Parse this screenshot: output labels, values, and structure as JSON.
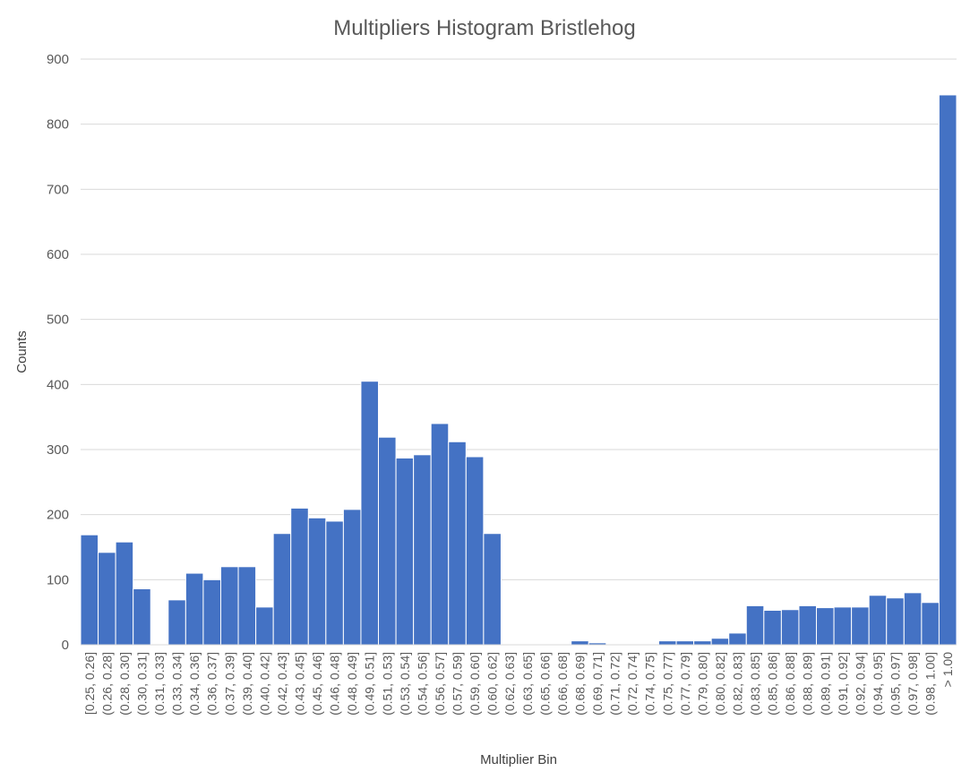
{
  "chart_data": {
    "type": "bar",
    "title": "Multipliers Histogram Bristlehog",
    "xlabel": "Multiplier Bin",
    "ylabel": "Counts",
    "ylim": [
      0,
      900
    ],
    "yticks": [
      0,
      100,
      200,
      300,
      400,
      500,
      600,
      700,
      800,
      900
    ],
    "grid": true,
    "legend": "none",
    "bar_color": "#4472C4",
    "categories": [
      "[0.25, 0.26]",
      "(0.26, 0.28]",
      "(0.28, 0.30]",
      "(0.30, 0.31]",
      "(0.31, 0.33]",
      "(0.33, 0.34]",
      "(0.34, 0.36]",
      "(0.36, 0.37]",
      "(0.37, 0.39]",
      "(0.39, 0.40]",
      "(0.40, 0.42]",
      "(0.42, 0.43]",
      "(0.43, 0.45]",
      "(0.45, 0.46]",
      "(0.46, 0.48]",
      "(0.48, 0.49]",
      "(0.49, 0.51]",
      "(0.51, 0.53]",
      "(0.53, 0.54]",
      "(0.54, 0.56]",
      "(0.56, 0.57]",
      "(0.57, 0.59]",
      "(0.59, 0.60]",
      "(0.60, 0.62]",
      "(0.62, 0.63]",
      "(0.63, 0.65]",
      "(0.65, 0.66]",
      "(0.66, 0.68]",
      "(0.68, 0.69]",
      "(0.69, 0.71]",
      "(0.71, 0.72]",
      "(0.72, 0.74]",
      "(0.74, 0.75]",
      "(0.75, 0.77]",
      "(0.77, 0.79]",
      "(0.79, 0.80]",
      "(0.80, 0.82]",
      "(0.82, 0.83]",
      "(0.83, 0.85]",
      "(0.85, 0.86]",
      "(0.86, 0.88]",
      "(0.88, 0.89]",
      "(0.89, 0.91]",
      "(0.91, 0.92]",
      "(0.92, 0.94]",
      "(0.94, 0.95]",
      "(0.95, 0.97]",
      "(0.97, 0.98]",
      "(0.98, 1.00]",
      "> 1.00"
    ],
    "values": [
      169,
      142,
      158,
      86,
      0,
      69,
      110,
      100,
      120,
      120,
      58,
      171,
      210,
      195,
      190,
      208,
      405,
      319,
      287,
      292,
      340,
      312,
      289,
      171,
      0,
      0,
      0,
      0,
      6,
      3,
      0,
      0,
      0,
      6,
      6,
      6,
      10,
      18,
      60,
      53,
      54,
      60,
      57,
      58,
      58,
      76,
      72,
      80,
      65,
      845
    ]
  }
}
